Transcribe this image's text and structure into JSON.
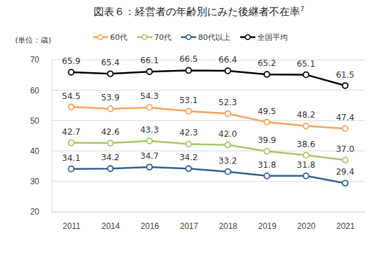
{
  "chart_data": {
    "type": "line",
    "title": "図表６：経営者の年齢別にみた後継者不在率",
    "title_footnote": "7",
    "y_label": "(単位：歳)",
    "categories": [
      "2011",
      "2014",
      "2016",
      "2017",
      "2018",
      "2019",
      "2020",
      "2021"
    ],
    "series": [
      {
        "name": "60代",
        "color": "#f4a25c",
        "values": [
          54.5,
          53.9,
          54.3,
          53.1,
          52.3,
          49.5,
          48.2,
          47.4
        ]
      },
      {
        "name": "70代",
        "color": "#a5c66a",
        "values": [
          42.7,
          42.6,
          43.3,
          42.3,
          42.0,
          39.9,
          38.6,
          37.0
        ],
        "value_labels": [
          "42.7",
          "42.6",
          "43.3",
          "42.3",
          "42.0",
          "39.9",
          "38.6",
          "37.0"
        ]
      },
      {
        "name": "80代以上",
        "color": "#2f5f8f",
        "values": [
          34.1,
          34.2,
          34.7,
          34.2,
          33.2,
          31.8,
          31.8,
          29.4
        ]
      },
      {
        "name": "全国平均",
        "color": "#000000",
        "values": [
          65.9,
          65.4,
          66.1,
          66.5,
          66.4,
          65.2,
          65.1,
          61.5
        ]
      }
    ],
    "ylim": [
      20,
      70
    ],
    "yticks": [
      20,
      30,
      40,
      50,
      60,
      70
    ],
    "grid": true,
    "data_labels": true,
    "marker": "circle",
    "legend": "top"
  }
}
